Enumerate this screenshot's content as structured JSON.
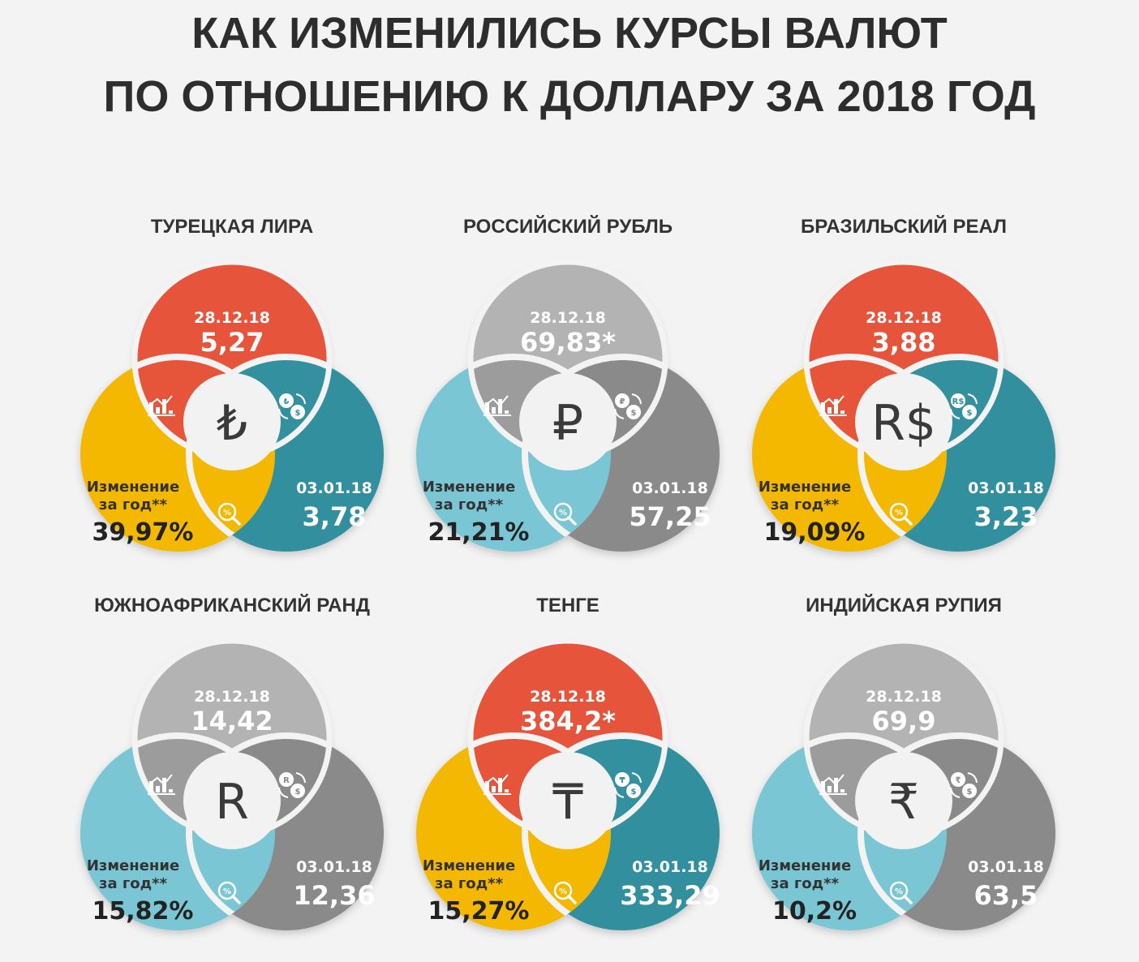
{
  "title": {
    "line1": "КАК ИЗМЕНИЛИСЬ КУРСЫ ВАЛЮТ",
    "line2": "ПО ОТНОШЕНИЮ К ДОЛЛАРУ ЗА 2018 ГОД"
  },
  "colors": {
    "orange": "#e6553a",
    "yellow": "#f5b800",
    "teal": "#33909e",
    "light_blue": "#7ac6d4",
    "light_gray": "#b3b3b3",
    "mid_gray": "#9c9c9c",
    "dark_gray": "#8a8a8a"
  },
  "icons": {
    "top_left": "bar-chart-icon",
    "top_right": "currency-exchange-icon",
    "bottom": "percent-magnifier-icon"
  },
  "panels": [
    {
      "name": "ТУРЕЦКАЯ ЛИРА",
      "symbol": "₺",
      "top_date": "28.12.18",
      "top_value": "5,27",
      "right_date": "03.01.18",
      "right_value": "3,78",
      "change_label_1": "Изменение",
      "change_label_2": "за год**",
      "change_value": "39,97%",
      "exchange_glyph": "₺",
      "palette": {
        "top": "orange",
        "left": "yellow",
        "right": "teal",
        "tl": "orange",
        "tr": "teal",
        "bottom": "yellow"
      }
    },
    {
      "name": "РОССИЙСКИЙ РУБЛЬ",
      "symbol": "₽",
      "top_date": "28.12.18",
      "top_value": "69,83*",
      "right_date": "03.01.18",
      "right_value": "57,25",
      "change_label_1": "Изменение",
      "change_label_2": "за год**",
      "change_value": "21,21%",
      "exchange_glyph": "₽",
      "palette": {
        "top": "light_gray",
        "left": "light_blue",
        "right": "dark_gray",
        "tl": "mid_gray",
        "tr": "dark_gray",
        "bottom": "light_blue"
      }
    },
    {
      "name": "БРАЗИЛЬСКИЙ РЕАЛ",
      "symbol": "R$",
      "top_date": "28.12.18",
      "top_value": "3,88",
      "right_date": "03.01.18",
      "right_value": "3,23",
      "change_label_1": "Изменение",
      "change_label_2": "за год**",
      "change_value": "19,09%",
      "exchange_glyph": "R$",
      "palette": {
        "top": "orange",
        "left": "yellow",
        "right": "teal",
        "tl": "orange",
        "tr": "teal",
        "bottom": "yellow"
      }
    },
    {
      "name": "ЮЖНОАФРИКАНСКИЙ РАНД",
      "symbol": "R",
      "top_date": "28.12.18",
      "top_value": "14,42",
      "right_date": "03.01.18",
      "right_value": "12,36",
      "change_label_1": "Изменение",
      "change_label_2": "за год**",
      "change_value": "15,82%",
      "exchange_glyph": "R",
      "palette": {
        "top": "light_gray",
        "left": "light_blue",
        "right": "dark_gray",
        "tl": "mid_gray",
        "tr": "dark_gray",
        "bottom": "light_blue"
      }
    },
    {
      "name": "ТЕНГЕ",
      "symbol": "₸",
      "top_date": "28.12.18",
      "top_value": "384,2*",
      "right_date": "03.01.18",
      "right_value": "333,29",
      "change_label_1": "Изменение",
      "change_label_2": "за год**",
      "change_value": "15,27%",
      "exchange_glyph": "₸",
      "palette": {
        "top": "orange",
        "left": "yellow",
        "right": "teal",
        "tl": "orange",
        "tr": "teal",
        "bottom": "yellow"
      }
    },
    {
      "name": "ИНДИЙСКАЯ РУПИЯ",
      "symbol": "₹",
      "top_date": "28.12.18",
      "top_value": "69,9",
      "right_date": "03.01.18",
      "right_value": "63,5",
      "change_label_1": "Изменение",
      "change_label_2": "за год**",
      "change_value": "10,2%",
      "exchange_glyph": "₹",
      "palette": {
        "top": "light_gray",
        "left": "light_blue",
        "right": "dark_gray",
        "tl": "mid_gray",
        "tr": "dark_gray",
        "bottom": "light_blue"
      }
    }
  ]
}
